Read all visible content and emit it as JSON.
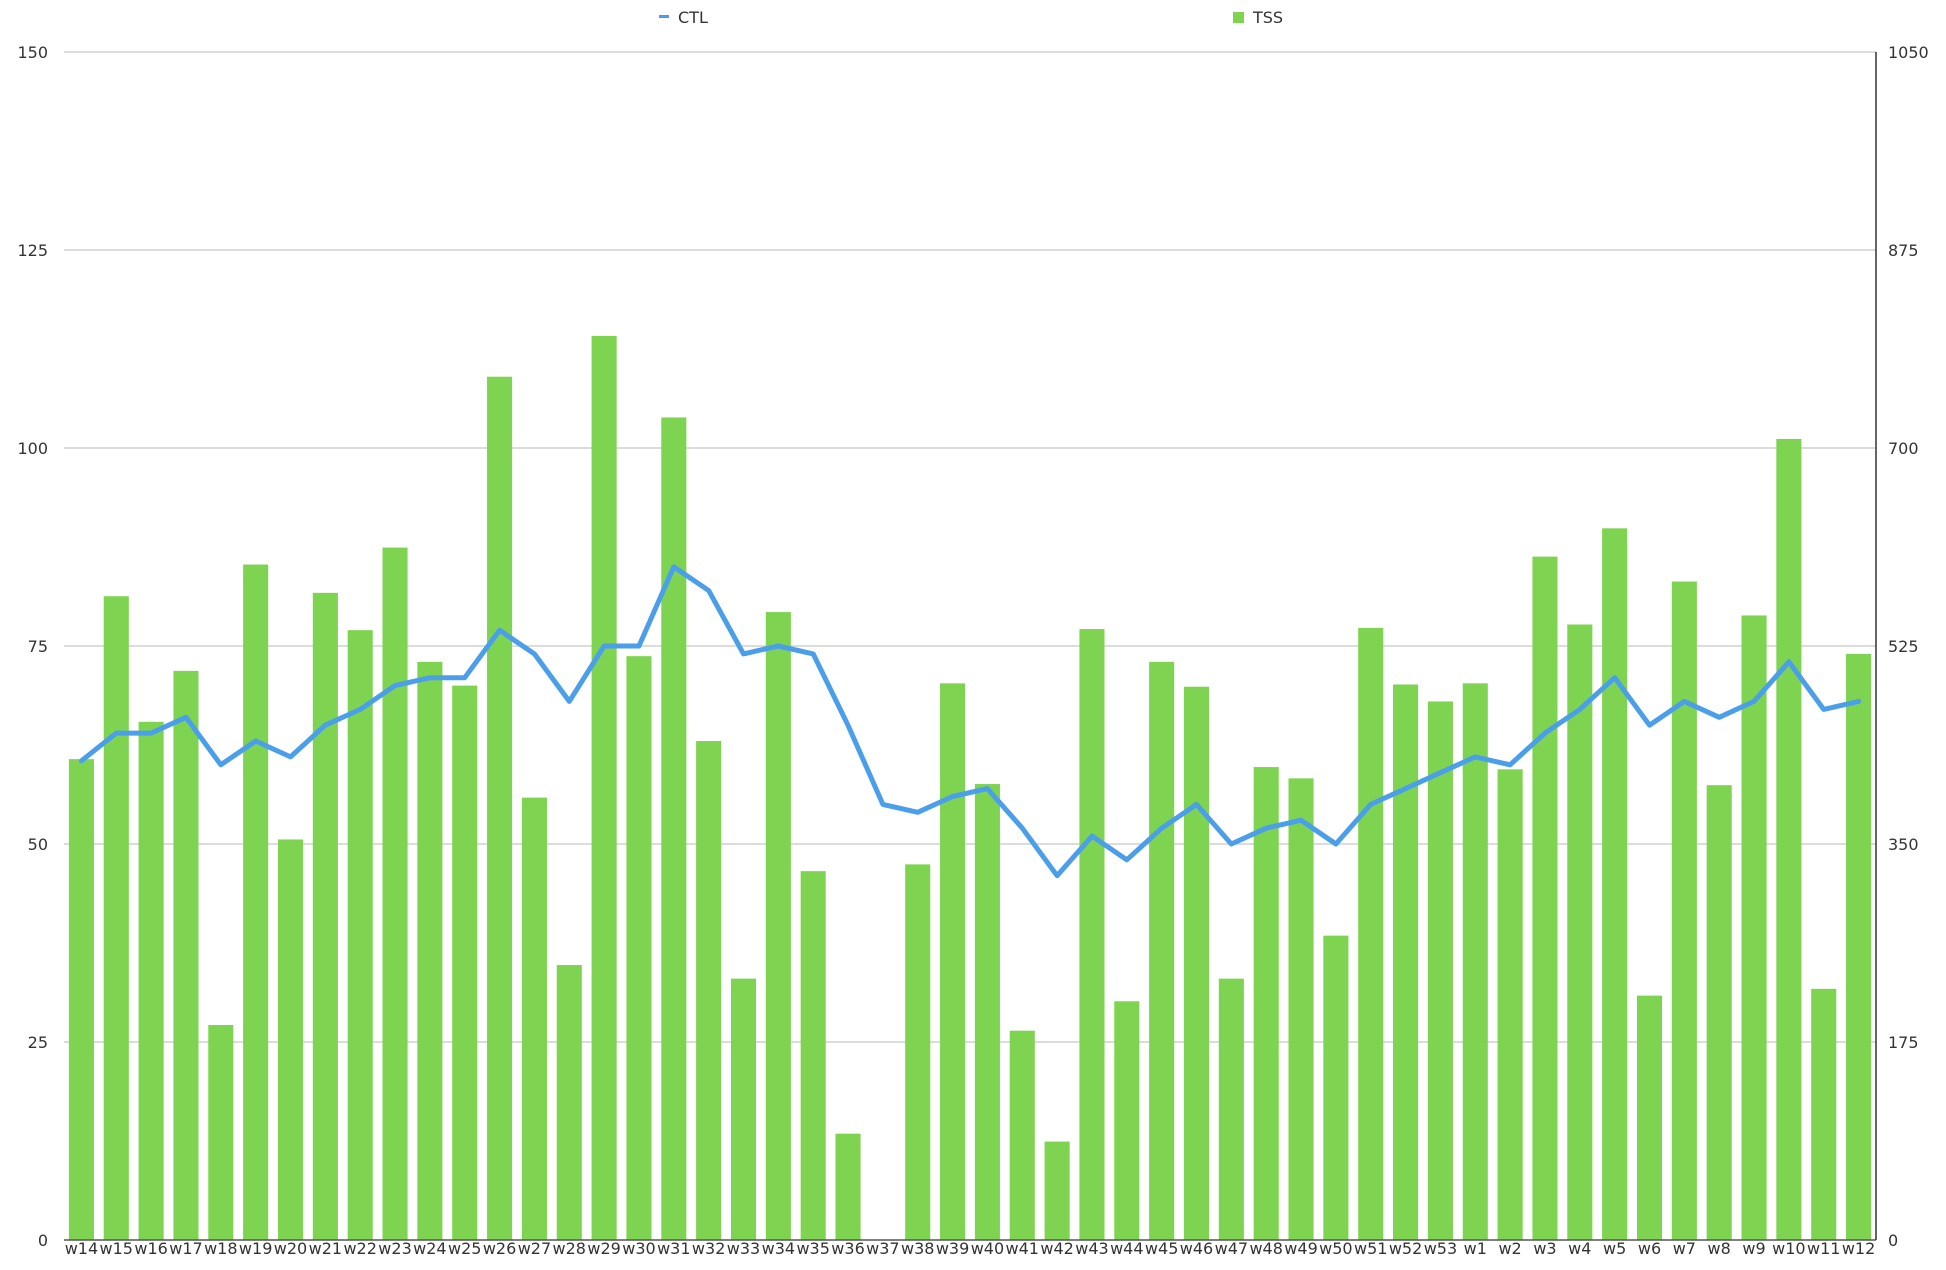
{
  "chart_data": {
    "type": "bar",
    "title": "",
    "xlabel": "",
    "ylabel": "",
    "y2label": "",
    "grid": true,
    "legend_position": "top",
    "categories": [
      "w14",
      "w15",
      "w16",
      "w17",
      "w18",
      "w19",
      "w20",
      "w21",
      "w22",
      "w23",
      "w24",
      "w25",
      "w26",
      "w27",
      "w28",
      "w29",
      "w30",
      "w31",
      "w32",
      "w33",
      "w34",
      "w35",
      "w36",
      "w37",
      "w38",
      "w39",
      "w40",
      "w41",
      "w42",
      "w43",
      "w44",
      "w45",
      "w46",
      "w47",
      "w48",
      "w49",
      "w50",
      "w51",
      "w52",
      "w53",
      "w1",
      "w2",
      "w3",
      "w4",
      "w5",
      "w6",
      "w7",
      "w8",
      "w9",
      "w10",
      "w11",
      "w12"
    ],
    "ylim": [
      0,
      150
    ],
    "y_ticks": [
      0,
      25,
      50,
      75,
      100,
      125,
      150
    ],
    "y2lim": [
      0,
      1050
    ],
    "y2_ticks": [
      0,
      175,
      350,
      525,
      700,
      875,
      1050
    ],
    "series": [
      {
        "name": "TSS",
        "type": "bar",
        "axis": "right",
        "color": "#7ed450",
        "values": [
          425,
          569,
          458,
          503,
          190,
          597,
          354,
          572,
          539,
          612,
          511,
          490,
          763,
          391,
          243,
          799,
          516,
          727,
          441,
          231,
          555,
          326,
          94,
          0,
          332,
          492,
          403,
          185,
          87,
          540,
          211,
          511,
          489,
          231,
          418,
          408,
          269,
          541,
          491,
          476,
          492,
          416,
          604,
          544,
          629,
          216,
          582,
          402,
          552,
          708,
          222,
          518
        ]
      },
      {
        "name": "CTL",
        "type": "line",
        "axis": "left",
        "color": "#4a9eea",
        "values": [
          60.5,
          64,
          64,
          66,
          60,
          63,
          61,
          65,
          67,
          70,
          71,
          71,
          77,
          74,
          68,
          75,
          75,
          85,
          82,
          74,
          75,
          74,
          65,
          55,
          54,
          56,
          57,
          52,
          46,
          51,
          48,
          52,
          55,
          50,
          52,
          53,
          50,
          55,
          57,
          59,
          61,
          60,
          64,
          67,
          71,
          65,
          68,
          66,
          68,
          73,
          67,
          68
        ]
      }
    ]
  }
}
